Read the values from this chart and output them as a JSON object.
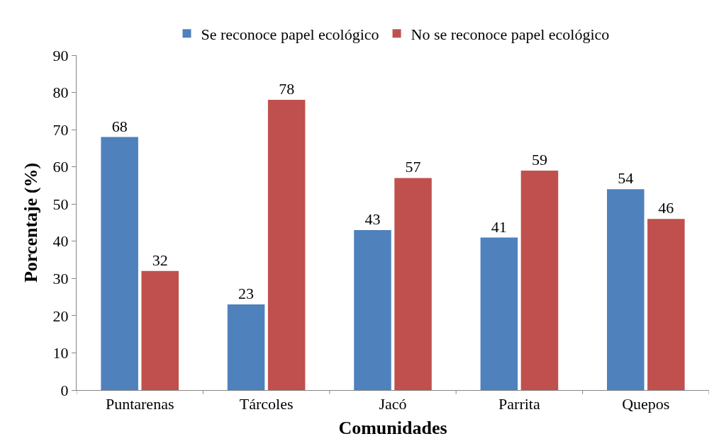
{
  "chart_data": {
    "type": "bar",
    "xlabel": "Comunidades",
    "ylabel": "Porcentaje (%)",
    "categories": [
      "Puntarenas",
      "Tárcoles",
      "Jacó",
      "Parrita",
      "Quepos"
    ],
    "series": [
      {
        "name": "Se reconoce papel ecológico",
        "color": "#4f81bd",
        "values": [
          68,
          23,
          43,
          41,
          54
        ]
      },
      {
        "name": "No se reconoce papel ecológico",
        "color": "#c0504d",
        "values": [
          32,
          78,
          57,
          59,
          46
        ]
      }
    ],
    "ylim": [
      0,
      90
    ],
    "yticks": [
      0,
      10,
      20,
      30,
      40,
      50,
      60,
      70,
      80,
      90
    ],
    "legend": "top",
    "data_labels": true
  }
}
